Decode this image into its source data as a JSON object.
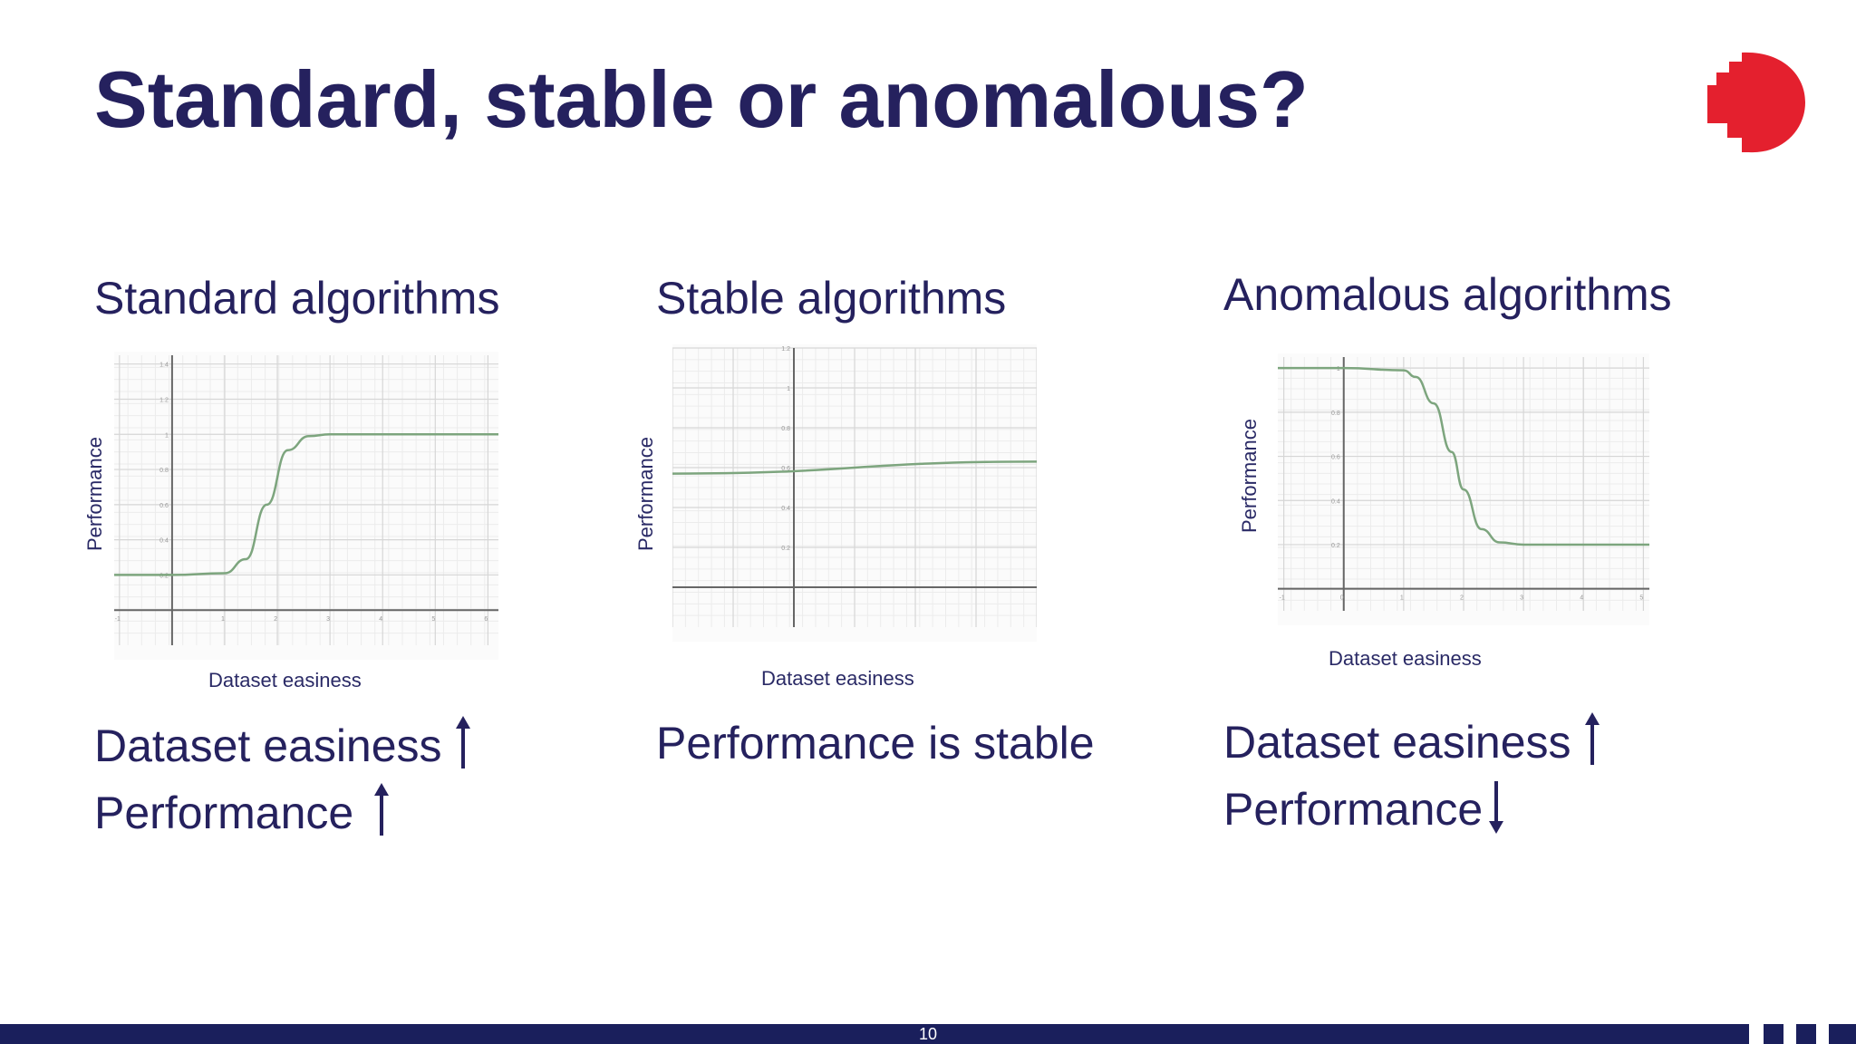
{
  "slide": {
    "title": "Standard, stable or anomalous?",
    "page_number": "10",
    "brand_color": "#e4202e",
    "text_color": "#25215e"
  },
  "columns": [
    {
      "heading": "Standard algorithms",
      "caption_lines": [
        {
          "text": "Dataset easiness",
          "arrow": "up"
        },
        {
          "text": "Performance",
          "arrow": "up"
        }
      ]
    },
    {
      "heading": "Stable algorithms",
      "caption_lines": [
        {
          "text": "Performance is stable",
          "arrow": ""
        }
      ]
    },
    {
      "heading": "Anomalous algorithms",
      "caption_lines": [
        {
          "text": "Dataset easiness",
          "arrow": "up"
        },
        {
          "text": "Performance",
          "arrow": "down"
        }
      ]
    }
  ],
  "chart_data": [
    {
      "type": "line",
      "xlabel": "Dataset easiness",
      "ylabel": "Performance",
      "xlim": [
        -1.1,
        6.2
      ],
      "ylim": [
        -0.2,
        1.45
      ],
      "x_ticks": [
        -1,
        1,
        2,
        3,
        4,
        5,
        6
      ],
      "y_ticks": [
        0.2,
        0.4,
        0.6,
        0.8,
        1,
        1.2,
        1.4
      ],
      "grid": true,
      "series": [
        {
          "x": [
            -1.5,
            0,
            1,
            1.4,
            1.8,
            2.2,
            2.6,
            3,
            4,
            5,
            6.2
          ],
          "y": [
            0.2,
            0.2,
            0.21,
            0.29,
            0.6,
            0.91,
            0.99,
            1.0,
            1.0,
            1.0,
            1.0
          ]
        }
      ]
    },
    {
      "type": "line",
      "xlabel": "Dataset easiness",
      "ylabel": "Performance",
      "xlim": [
        -2,
        4
      ],
      "ylim": [
        -0.2,
        1.2
      ],
      "x_ticks": [],
      "y_ticks": [
        0.2,
        0.4,
        0.6,
        0.8,
        1,
        1.2
      ],
      "grid": true,
      "series": [
        {
          "x": [
            -2,
            4
          ],
          "y": [
            0.57,
            0.63
          ]
        }
      ]
    },
    {
      "type": "line",
      "xlabel": "Dataset easiness",
      "ylabel": "Performance",
      "xlim": [
        -1.1,
        5.1
      ],
      "ylim": [
        -0.1,
        1.05
      ],
      "x_ticks": [
        -1,
        0,
        1,
        2,
        3,
        4,
        5
      ],
      "y_ticks": [
        0.2,
        0.4,
        0.6,
        0.8,
        1
      ],
      "grid": true,
      "series": [
        {
          "x": [
            -1.2,
            0,
            1,
            1.2,
            1.5,
            1.8,
            2,
            2.3,
            2.6,
            3,
            4,
            5.1
          ],
          "y": [
            1.0,
            1.0,
            0.99,
            0.96,
            0.84,
            0.62,
            0.45,
            0.27,
            0.21,
            0.2,
            0.2,
            0.2
          ]
        }
      ]
    }
  ]
}
